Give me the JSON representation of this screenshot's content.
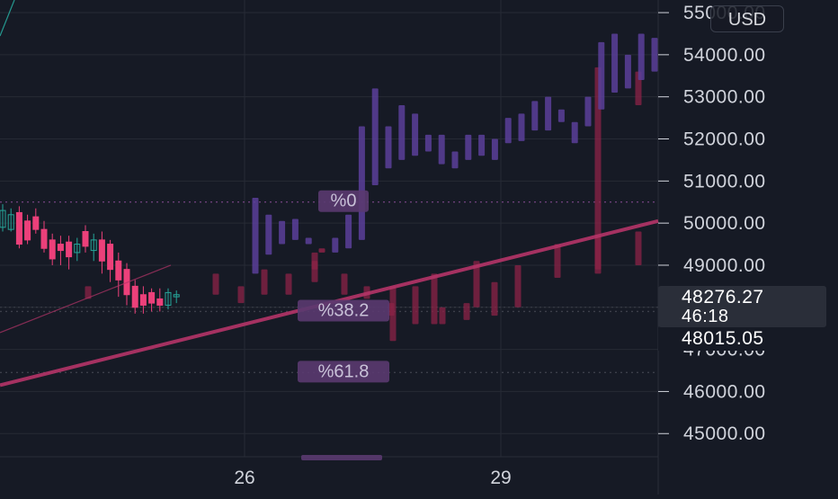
{
  "chart_data": {
    "type": "candlestick",
    "currency": "USD",
    "y_axis": {
      "ticks": [
        45000,
        46000,
        47000,
        48000,
        49000,
        50000,
        51000,
        52000,
        53000,
        54000,
        55000
      ],
      "tick_labels": [
        "45000.00",
        "46000.00",
        "47000.00",
        "48000.00",
        "49000.00",
        "50000.00",
        "51000.00",
        "52000.00",
        "53000.00",
        "54000.00",
        "55000.00"
      ],
      "range": [
        44450,
        55300
      ]
    },
    "x_axis": {
      "tick_labels": [
        "26",
        "29"
      ]
    },
    "last_price": {
      "value": "48276.27",
      "countdown": "46:18"
    },
    "prev_close": {
      "value": "48015.05"
    },
    "fib_levels": [
      {
        "label": "%0",
        "price": 50500
      },
      {
        "label": "%38.2",
        "price": 47900
      },
      {
        "label": "%61.8",
        "price": 46450
      }
    ],
    "colors": {
      "background": "#161a25",
      "grid": "#262a35",
      "bull_small": "#26a69a",
      "bear_small": "#ec407a",
      "bull_large": "#5b3f9a",
      "bear_large": "#8c2347",
      "trendline": "#b53468",
      "fib_label": "#5a3a70",
      "axis_text": "#d1d4dc"
    },
    "small_candles": [
      {
        "o": 49900,
        "c": 50300,
        "h": 50450,
        "l": 49800,
        "bull": true
      },
      {
        "o": 49850,
        "c": 50200,
        "h": 50350,
        "l": 49800,
        "bull": true
      },
      {
        "o": 50250,
        "c": 49500,
        "h": 50400,
        "l": 49400,
        "bull": false
      },
      {
        "o": 50050,
        "c": 49600,
        "h": 50200,
        "l": 49500,
        "bull": false
      },
      {
        "o": 50150,
        "c": 49850,
        "h": 50350,
        "l": 49750,
        "bull": false
      },
      {
        "o": 49850,
        "c": 49400,
        "h": 50050,
        "l": 49300,
        "bull": false
      },
      {
        "o": 49600,
        "c": 49150,
        "h": 49750,
        "l": 49000,
        "bull": false
      },
      {
        "o": 49500,
        "c": 49350,
        "h": 49700,
        "l": 49000,
        "bull": false
      },
      {
        "o": 49550,
        "c": 49200,
        "h": 49700,
        "l": 48900,
        "bull": false
      },
      {
        "o": 49300,
        "c": 49500,
        "h": 49650,
        "l": 49100,
        "bull": true
      },
      {
        "o": 49800,
        "c": 49450,
        "h": 49950,
        "l": 49300,
        "bull": false
      },
      {
        "o": 49350,
        "c": 49600,
        "h": 49750,
        "l": 49100,
        "bull": true
      },
      {
        "o": 49600,
        "c": 49100,
        "h": 49800,
        "l": 48800,
        "bull": false
      },
      {
        "o": 49500,
        "c": 48900,
        "h": 49600,
        "l": 48600,
        "bull": false
      },
      {
        "o": 49100,
        "c": 48650,
        "h": 49300,
        "l": 48250,
        "bull": false
      },
      {
        "o": 48900,
        "c": 48300,
        "h": 49050,
        "l": 48050,
        "bull": false
      },
      {
        "o": 48500,
        "c": 48000,
        "h": 48650,
        "l": 47850,
        "bull": false
      },
      {
        "o": 48300,
        "c": 48050,
        "h": 48500,
        "l": 47850,
        "bull": false
      },
      {
        "o": 48350,
        "c": 48100,
        "h": 48450,
        "l": 47900,
        "bull": false
      },
      {
        "o": 48200,
        "c": 48050,
        "h": 48450,
        "l": 47900,
        "bull": false
      },
      {
        "o": 48050,
        "c": 48350,
        "h": 48450,
        "l": 47950,
        "bull": true
      },
      {
        "o": 48250,
        "c": 48300,
        "h": 48400,
        "l": 48100,
        "bull": true
      }
    ],
    "large_candles": [
      {
        "o": 48800,
        "c": 50600,
        "h": 50600,
        "l": 48800,
        "bull": true
      },
      {
        "o": 49250,
        "c": 50200,
        "h": 50300,
        "l": 49250,
        "bull": true
      },
      {
        "o": 49500,
        "c": 50050,
        "h": 50100,
        "l": 49500,
        "bull": true
      },
      {
        "o": 49600,
        "c": 50100,
        "h": 50100,
        "l": 49600,
        "bull": true
      },
      {
        "o": 49500,
        "c": 49650,
        "h": 49700,
        "l": 49500,
        "bull": true
      },
      {
        "o": 49400,
        "c": 49300,
        "h": 49500,
        "l": 49200,
        "bull": false
      },
      {
        "o": 49300,
        "c": 49650,
        "h": 49700,
        "l": 49300,
        "bull": true
      },
      {
        "o": 49400,
        "c": 50200,
        "h": 50200,
        "l": 49400,
        "bull": true
      },
      {
        "o": 49600,
        "c": 52300,
        "h": 52300,
        "l": 49600,
        "bull": true
      },
      {
        "o": 50900,
        "c": 53200,
        "h": 53200,
        "l": 50900,
        "bull": true
      },
      {
        "o": 51300,
        "c": 52300,
        "h": 52300,
        "l": 51300,
        "bull": true
      },
      {
        "o": 51500,
        "c": 52800,
        "h": 52800,
        "l": 51500,
        "bull": true
      },
      {
        "o": 51600,
        "c": 52600,
        "h": 52600,
        "l": 51600,
        "bull": true
      },
      {
        "o": 51700,
        "c": 52100,
        "h": 52100,
        "l": 51700,
        "bull": true
      },
      {
        "o": 51400,
        "c": 52100,
        "h": 52100,
        "l": 51400,
        "bull": true
      },
      {
        "o": 51300,
        "c": 51700,
        "h": 51700,
        "l": 51300,
        "bull": true
      },
      {
        "o": 51500,
        "c": 52100,
        "h": 52100,
        "l": 51500,
        "bull": true
      },
      {
        "o": 51600,
        "c": 52100,
        "h": 52100,
        "l": 51600,
        "bull": true
      },
      {
        "o": 51500,
        "c": 52000,
        "h": 52000,
        "l": 51500,
        "bull": true
      },
      {
        "o": 51900,
        "c": 52500,
        "h": 52500,
        "l": 51900,
        "bull": true
      },
      {
        "o": 51950,
        "c": 52600,
        "h": 52600,
        "l": 51950,
        "bull": true
      },
      {
        "o": 52200,
        "c": 52900,
        "h": 52900,
        "l": 52200,
        "bull": true
      },
      {
        "o": 52200,
        "c": 53000,
        "h": 53000,
        "l": 52200,
        "bull": true
      },
      {
        "o": 52400,
        "c": 52700,
        "h": 52700,
        "l": 52400,
        "bull": true
      },
      {
        "o": 51900,
        "c": 52400,
        "h": 52400,
        "l": 51900,
        "bull": true
      },
      {
        "o": 52300,
        "c": 53000,
        "h": 53000,
        "l": 52300,
        "bull": true
      },
      {
        "o": 52700,
        "c": 54300,
        "h": 54300,
        "l": 52700,
        "bull": true
      },
      {
        "o": 53100,
        "c": 54500,
        "h": 54500,
        "l": 53100,
        "bull": true
      },
      {
        "o": 53200,
        "c": 54000,
        "h": 54000,
        "l": 53200,
        "bull": true
      },
      {
        "o": 53400,
        "c": 54500,
        "h": 54500,
        "l": 53400,
        "bull": true
      },
      {
        "o": 53600,
        "c": 54400,
        "h": 54400,
        "l": 53600,
        "bull": true
      }
    ],
    "bear_bars": [
      {
        "top": 48500,
        "bottom": 48200
      },
      {
        "top": 48800,
        "bottom": 48300
      },
      {
        "top": 48500,
        "bottom": 48100
      },
      {
        "top": 48900,
        "bottom": 48300
      },
      {
        "top": 48800,
        "bottom": 48300
      },
      {
        "top": 49100,
        "bottom": 48600
      },
      {
        "top": 48800,
        "bottom": 48300
      },
      {
        "top": 48500,
        "bottom": 48200
      },
      {
        "top": 48100,
        "bottom": 47800
      },
      {
        "top": 48500,
        "bottom": 47600
      },
      {
        "top": 48000,
        "bottom": 47600
      },
      {
        "top": 48100,
        "bottom": 47700
      },
      {
        "top": 48600,
        "bottom": 47800
      },
      {
        "top": 48500,
        "bottom": 47200
      },
      {
        "top": 48800,
        "bottom": 47600
      },
      {
        "top": 49100,
        "bottom": 48000
      },
      {
        "top": 49000,
        "bottom": 48000
      },
      {
        "top": 49500,
        "bottom": 48700
      },
      {
        "top": 49700,
        "bottom": 48900
      },
      {
        "top": 49800,
        "bottom": 49000
      },
      {
        "top": 49300,
        "bottom": 48900
      },
      {
        "top": 53700,
        "bottom": 48800
      },
      {
        "top": 53600,
        "bottom": 52800
      }
    ]
  }
}
